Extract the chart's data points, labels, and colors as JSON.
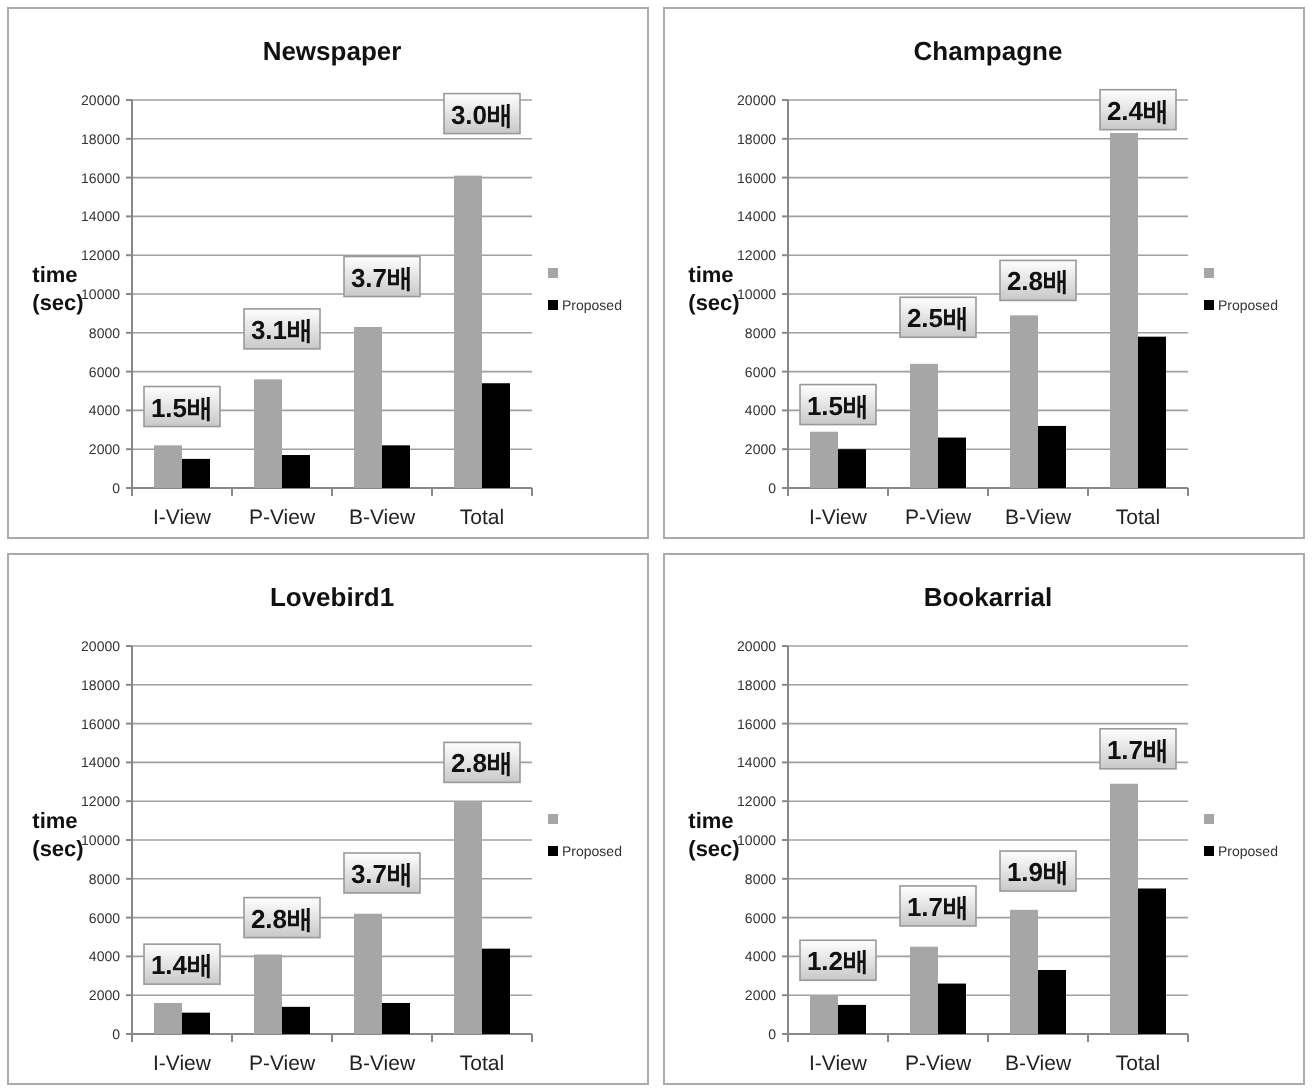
{
  "chart_data": [
    {
      "type": "bar",
      "title": "Newspaper",
      "ylabel": "time (sec)",
      "categories": [
        "I-View",
        "P-View",
        "B-View",
        "Total"
      ],
      "ylim": [
        0,
        20000
      ],
      "yticks": [
        0,
        2000,
        4000,
        6000,
        8000,
        10000,
        12000,
        14000,
        16000,
        18000,
        20000
      ],
      "grid": "y",
      "legend": "right",
      "series": [
        {
          "color": "#a6a6a6",
          "values": [
            2200,
            5600,
            8300,
            16100
          ]
        },
        {
          "name": "Proposed",
          "color": "#000000",
          "values": [
            1500,
            1700,
            2200,
            5400
          ]
        }
      ],
      "annotations": [
        {
          "text": "1.5배",
          "x": "I-View",
          "y": 4200
        },
        {
          "text": "3.1배",
          "x": "P-View",
          "y": 8200
        },
        {
          "text": "3.7배",
          "x": "B-View",
          "y": 10900
        },
        {
          "text": "3.0배",
          "x": "Total",
          "y": 19300
        }
      ]
    },
    {
      "type": "bar",
      "title": "Champagne",
      "ylabel": "time (sec)",
      "categories": [
        "I-View",
        "P-View",
        "B-View",
        "Total"
      ],
      "ylim": [
        0,
        20000
      ],
      "yticks": [
        0,
        2000,
        4000,
        6000,
        8000,
        10000,
        12000,
        14000,
        16000,
        18000,
        20000
      ],
      "grid": "y",
      "legend": "right",
      "series": [
        {
          "color": "#a6a6a6",
          "values": [
            2900,
            6400,
            8900,
            18300
          ]
        },
        {
          "name": "Proposed",
          "color": "#000000",
          "values": [
            2000,
            2600,
            3200,
            7800
          ]
        }
      ],
      "annotations": [
        {
          "text": "1.5배",
          "x": "I-View",
          "y": 4300
        },
        {
          "text": "2.5배",
          "x": "P-View",
          "y": 8800
        },
        {
          "text": "2.8배",
          "x": "B-View",
          "y": 10700
        },
        {
          "text": "2.4배",
          "x": "Total",
          "y": 19500
        }
      ]
    },
    {
      "type": "bar",
      "title": "Lovebird1",
      "ylabel": "time (sec)",
      "categories": [
        "I-View",
        "P-View",
        "B-View",
        "Total"
      ],
      "ylim": [
        0,
        20000
      ],
      "yticks": [
        0,
        2000,
        4000,
        6000,
        8000,
        10000,
        12000,
        14000,
        16000,
        18000,
        20000
      ],
      "grid": "y",
      "legend": "right",
      "series": [
        {
          "color": "#a6a6a6",
          "values": [
            1600,
            4100,
            6200,
            12000
          ]
        },
        {
          "name": "Proposed",
          "color": "#000000",
          "values": [
            1100,
            1400,
            1600,
            4400
          ]
        }
      ],
      "annotations": [
        {
          "text": "1.4배",
          "x": "I-View",
          "y": 3600
        },
        {
          "text": "2.8배",
          "x": "P-View",
          "y": 6000
        },
        {
          "text": "3.7배",
          "x": "B-View",
          "y": 8300
        },
        {
          "text": "2.8배",
          "x": "Total",
          "y": 14000
        }
      ]
    },
    {
      "type": "bar",
      "title": "Bookarrial",
      "ylabel": "time (sec)",
      "categories": [
        "I-View",
        "P-View",
        "B-View",
        "Total"
      ],
      "ylim": [
        0,
        20000
      ],
      "yticks": [
        0,
        2000,
        4000,
        6000,
        8000,
        10000,
        12000,
        14000,
        16000,
        18000,
        20000
      ],
      "grid": "y",
      "legend": "right",
      "series": [
        {
          "color": "#a6a6a6",
          "values": [
            2000,
            4500,
            6400,
            12900
          ]
        },
        {
          "name": "Proposed",
          "color": "#000000",
          "values": [
            1500,
            2600,
            3300,
            7500
          ]
        }
      ],
      "annotations": [
        {
          "text": "1.2배",
          "x": "I-View",
          "y": 3800
        },
        {
          "text": "1.7배",
          "x": "P-View",
          "y": 6600
        },
        {
          "text": "1.9배",
          "x": "B-View",
          "y": 8400
        },
        {
          "text": "1.7배",
          "x": "Total",
          "y": 14700
        }
      ]
    }
  ]
}
